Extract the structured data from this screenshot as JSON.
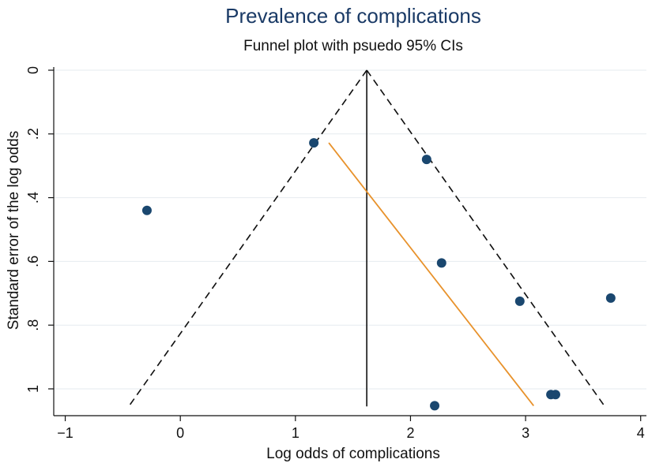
{
  "chart_data": {
    "type": "scatter",
    "title": "Prevalence of complications",
    "subtitle": "Funnel plot with psuedo 95% CIs",
    "xlabel": "Log odds of complications",
    "ylabel": "Standard error of the log odds",
    "xlim": [
      -1.1,
      4.05
    ],
    "ylim": [
      0,
      1.08
    ],
    "y_reversed": true,
    "x_ticks": [
      -1,
      0,
      1,
      2,
      3,
      4
    ],
    "x_tick_labels": [
      "−1",
      "0",
      "1",
      "2",
      "3",
      "4"
    ],
    "y_ticks": [
      0,
      0.2,
      0.4,
      0.6,
      0.8,
      1
    ],
    "y_tick_labels": [
      "0",
      ".2",
      ".4",
      ".6",
      ".8",
      "1"
    ],
    "grid": true,
    "pooled_estimate": 1.62,
    "ci_se_max": 1.055,
    "points": [
      {
        "x": 1.16,
        "y": 0.228
      },
      {
        "x": 2.14,
        "y": 0.28
      },
      {
        "x": -0.29,
        "y": 0.44
      },
      {
        "x": 2.27,
        "y": 0.605
      },
      {
        "x": 2.95,
        "y": 0.725
      },
      {
        "x": 3.74,
        "y": 0.715
      },
      {
        "x": 3.22,
        "y": 1.018
      },
      {
        "x": 3.26,
        "y": 1.018
      },
      {
        "x": 2.21,
        "y": 1.053
      }
    ],
    "regression_line": {
      "x1": 1.29,
      "y1": 0.228,
      "x2": 3.07,
      "y2": 1.053
    },
    "colors": {
      "points": "#1a476f",
      "regression": "#e8922b",
      "title": "#1a3a66",
      "grid": "#e6ebef"
    }
  }
}
